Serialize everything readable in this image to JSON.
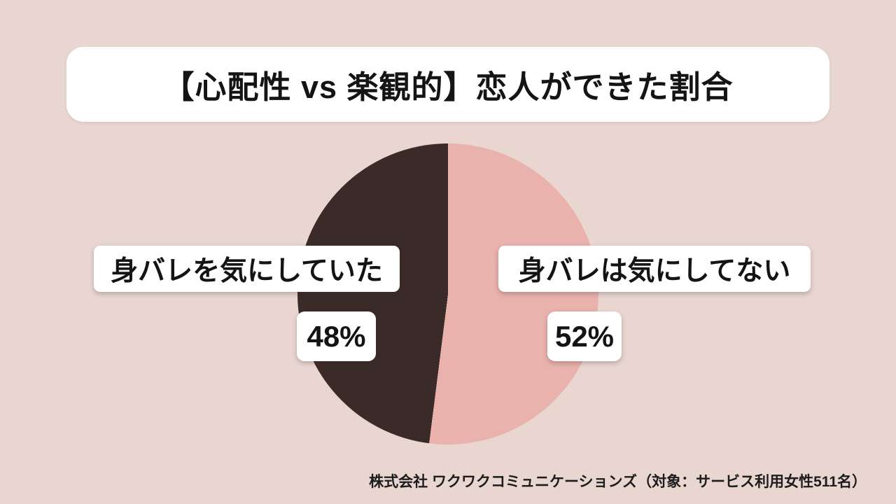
{
  "page": {
    "background_color": "#e9d6d1"
  },
  "title": {
    "text": "【心配性 vs 楽観的】恋人ができた割合"
  },
  "chart_data": {
    "type": "pie",
    "title": "【心配性 vs 楽観的】恋人ができた割合",
    "start_angle_deg": 0,
    "slices": [
      {
        "label": "身バレは気にしてない",
        "value": 52,
        "color": "#e9b2ac"
      },
      {
        "label": "身バレを気にしていた",
        "value": 48,
        "color": "#3a2b28"
      }
    ],
    "legend_position": "overlaid-label-boxes",
    "source": "株式会社 ワクワクコミュニケーションズ（対象：サービス利用女性511名）"
  },
  "annotations": {
    "left_label": "身バレを気にしていた",
    "left_percent": "48%",
    "right_label": "身バレは気にしてない",
    "right_percent": "52%"
  },
  "footer": {
    "source": "株式会社 ワクワクコミュニケーションズ（対象：サービス利用女性511名）"
  }
}
